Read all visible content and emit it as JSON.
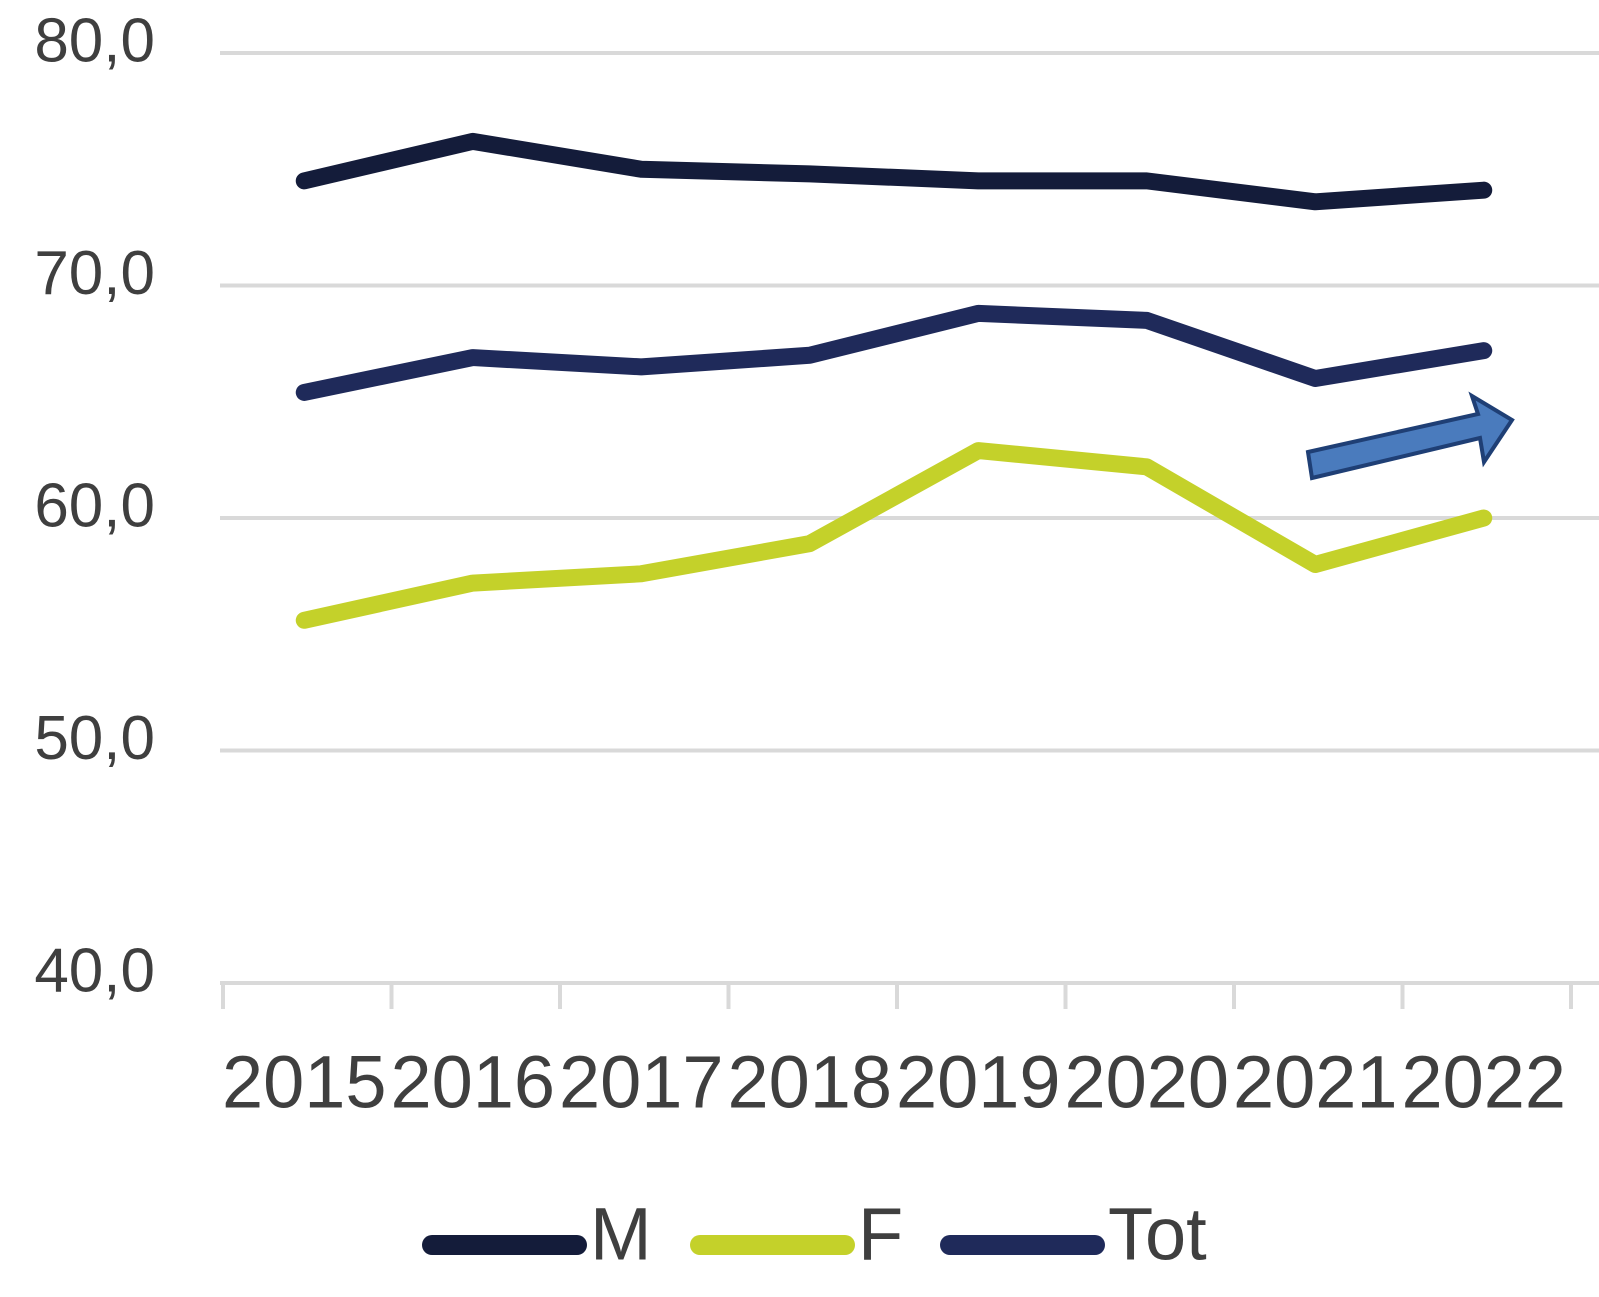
{
  "chart_data": {
    "type": "line",
    "categories": [
      "2015",
      "2016",
      "2017",
      "2018",
      "2019",
      "2020",
      "2021",
      "2022"
    ],
    "series": [
      {
        "name": "M",
        "color": "#141c3a",
        "values": [
          74.5,
          76.2,
          75.0,
          74.8,
          74.5,
          74.5,
          73.6,
          74.1
        ]
      },
      {
        "name": "F",
        "color": "#c4d12a",
        "values": [
          55.6,
          57.2,
          57.6,
          58.9,
          62.9,
          62.2,
          58.0,
          60.0
        ]
      },
      {
        "name": "Tot",
        "color": "#1f2a5a",
        "values": [
          65.4,
          66.9,
          66.5,
          67.0,
          68.8,
          68.5,
          66.0,
          67.2
        ]
      }
    ],
    "ylim": [
      40,
      80
    ],
    "yticks": [
      {
        "value": 40,
        "label": "40,0"
      },
      {
        "value": 50,
        "label": "50,0"
      },
      {
        "value": 60,
        "label": "60,0"
      },
      {
        "value": 70,
        "label": "70,0"
      },
      {
        "value": 80,
        "label": "80,0"
      }
    ],
    "grid": true,
    "legend": "bottom"
  }
}
